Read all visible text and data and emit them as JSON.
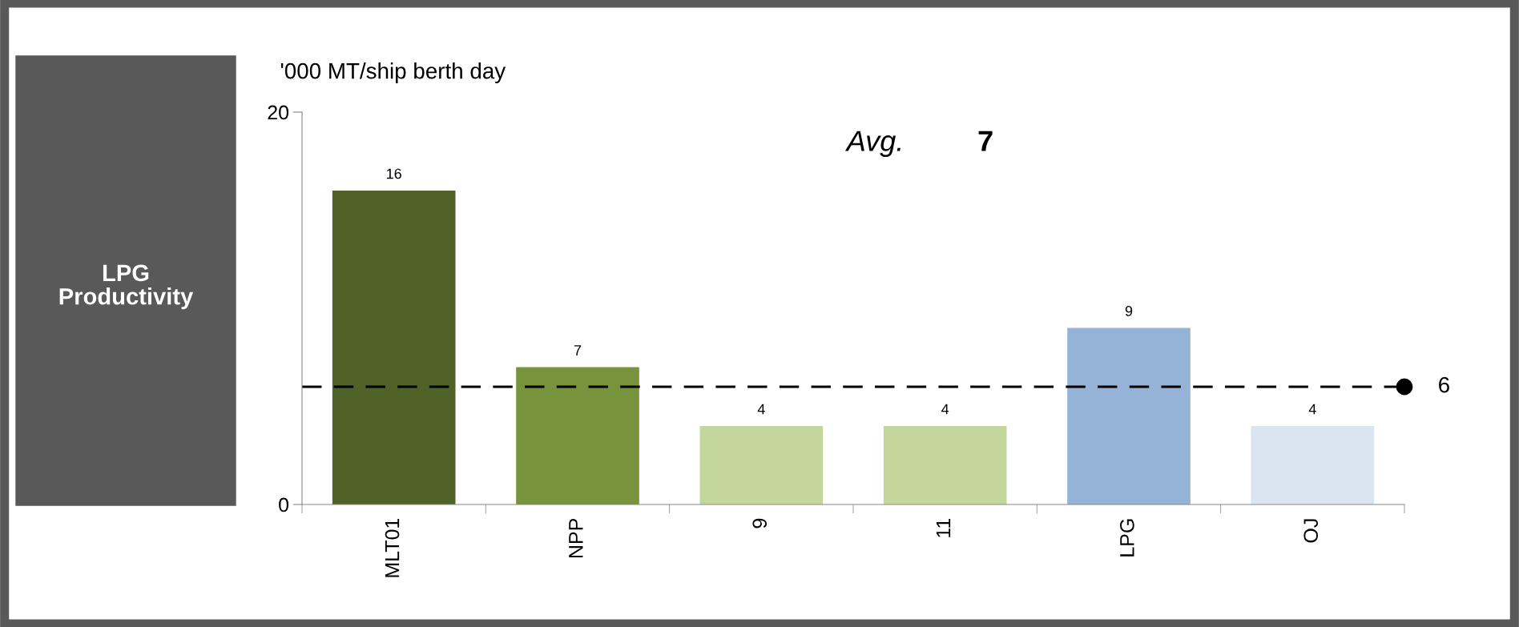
{
  "chart_data": {
    "type": "bar",
    "title": "LPG\nProductivity",
    "ylabel": "'000 MT/ship berth day",
    "categories": [
      "MLT01",
      "NPP",
      "9",
      "11",
      "LPG",
      "OJ"
    ],
    "values": [
      16,
      7,
      4,
      4,
      9,
      4
    ],
    "colors": [
      "#4f6228",
      "#77933c",
      "#c3d69b",
      "#c3d69b",
      "#95b3d7",
      "#dbe5f1"
    ],
    "data_labels": true,
    "ylim": [
      0,
      20
    ],
    "yticks": [
      0,
      20
    ],
    "grid": false,
    "ref_lines": [
      {
        "axis": "y",
        "value": 6,
        "label": "6",
        "color": "#000000",
        "line_style": "dashed"
      }
    ],
    "annotations": [
      "Avg.",
      "7"
    ]
  }
}
